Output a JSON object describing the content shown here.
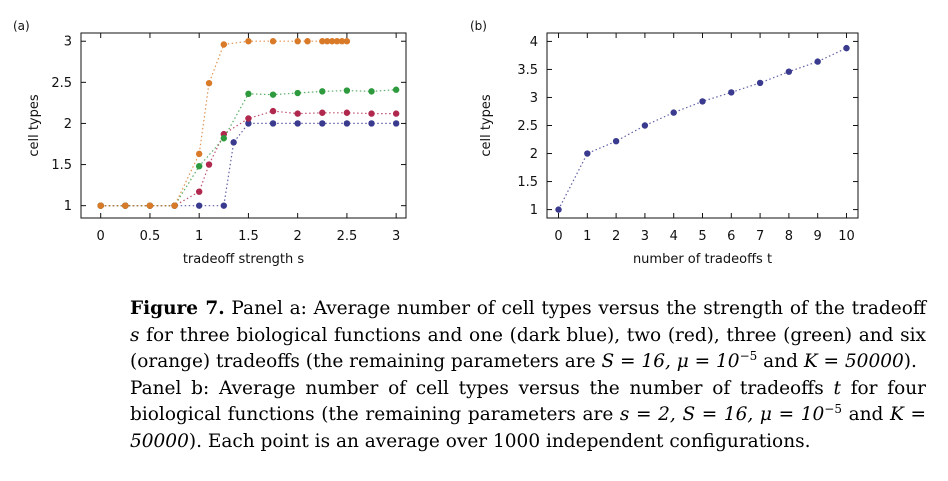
{
  "figure": {
    "panel_a_label": "(a)",
    "panel_b_label": "(b)"
  },
  "chart_data": [
    {
      "type": "scatter",
      "panel": "(a)",
      "xlabel": "tradeoff strength s",
      "ylabel": "cell types",
      "xlim": [
        -0.2,
        3.1
      ],
      "ylim": [
        0.85,
        3.1
      ],
      "xticks": [
        0,
        0.5,
        1,
        1.5,
        2,
        2.5,
        3
      ],
      "xtick_labels": [
        "0",
        "0.5",
        "1",
        "1.5",
        "2",
        "2.5",
        "3"
      ],
      "yticks": [
        1,
        1.5,
        2,
        2.5,
        3
      ],
      "ytick_labels": [
        "1",
        "1.5",
        "2",
        "2.5",
        "3"
      ],
      "grid": false,
      "connector": "dotted",
      "series": [
        {
          "color": "#3a3a8f",
          "x": [
            0,
            0.25,
            0.5,
            0.75,
            1,
            1.25,
            1.35,
            1.5,
            1.75,
            2,
            2.25,
            2.5,
            2.75,
            3
          ],
          "y": [
            1,
            1,
            1,
            1,
            1,
            1,
            1.77,
            2,
            2,
            2,
            2,
            2,
            2,
            2
          ]
        },
        {
          "color": "#b0284e",
          "x": [
            0,
            0.25,
            0.5,
            0.75,
            1,
            1.1,
            1.25,
            1.5,
            1.75,
            2,
            2.25,
            2.5,
            2.75,
            3
          ],
          "y": [
            1,
            1,
            1,
            1,
            1.17,
            1.5,
            1.87,
            2.06,
            2.15,
            2.12,
            2.13,
            2.13,
            2.12,
            2.12
          ]
        },
        {
          "color": "#2e9a3e",
          "x": [
            0,
            0.25,
            0.5,
            0.75,
            1,
            1.25,
            1.5,
            1.75,
            2,
            2.25,
            2.5,
            2.75,
            3
          ],
          "y": [
            1,
            1,
            1,
            1,
            1.48,
            1.82,
            2.36,
            2.35,
            2.37,
            2.39,
            2.4,
            2.39,
            2.41
          ]
        },
        {
          "color": "#d97a28",
          "x": [
            0,
            0.25,
            0.5,
            0.75,
            1,
            1.1,
            1.25,
            1.5,
            1.75,
            2,
            2.1,
            2.25,
            2.3,
            2.35,
            2.4,
            2.45,
            2.5
          ],
          "y": [
            1,
            1,
            1,
            1,
            1.63,
            2.49,
            2.96,
            3,
            3,
            3,
            3,
            3,
            3,
            3,
            3,
            3,
            3
          ]
        }
      ]
    },
    {
      "type": "scatter",
      "panel": "(b)",
      "xlabel": "number of tradeoffs t",
      "ylabel": "cell types",
      "xlim": [
        -0.4,
        10.4
      ],
      "ylim": [
        0.85,
        4.15
      ],
      "xticks": [
        0,
        1,
        2,
        3,
        4,
        5,
        6,
        7,
        8,
        9,
        10
      ],
      "xtick_labels": [
        "0",
        "1",
        "2",
        "3",
        "4",
        "5",
        "6",
        "7",
        "8",
        "9",
        "10"
      ],
      "yticks": [
        1,
        1.5,
        2,
        2.5,
        3,
        3.5,
        4
      ],
      "ytick_labels": [
        "1",
        "1.5",
        "2",
        "2.5",
        "3",
        "3.5",
        "4"
      ],
      "grid": false,
      "connector": "dotted",
      "series": [
        {
          "color": "#3a3a8f",
          "x": [
            0,
            1,
            2,
            3,
            4,
            5,
            6,
            7,
            8,
            9,
            10
          ],
          "y": [
            1,
            2,
            2.22,
            2.5,
            2.73,
            2.93,
            3.09,
            3.26,
            3.46,
            3.64,
            3.88
          ]
        }
      ]
    }
  ],
  "caption": {
    "label": "Figure 7.",
    "a_1": " Panel a: Average number of cell types versus the strength of the tradeoff ",
    "a_var_s": "s",
    "a_2": " for three biological functions and one (dark blue), two (red), three (green) and six (orange) tradeoffs (the remaining parameters are ",
    "a_params": "S = 16, μ = 10",
    "a_exp": "−5",
    "a_3": " and ",
    "a_K": "K = 50000",
    "a_4": ").",
    "b_1": "Panel b:  Average number of cell types versus the number of tradeoffs ",
    "b_var_t": "t",
    "b_2": " for four biological functions (the remaining parameters are ",
    "b_params": "s = 2, S = 16, μ = 10",
    "b_exp": "−5",
    "b_3": " and ",
    "b_K": "K = 50000",
    "b_4": "). Each point is an average over 1000 independent configurations."
  }
}
